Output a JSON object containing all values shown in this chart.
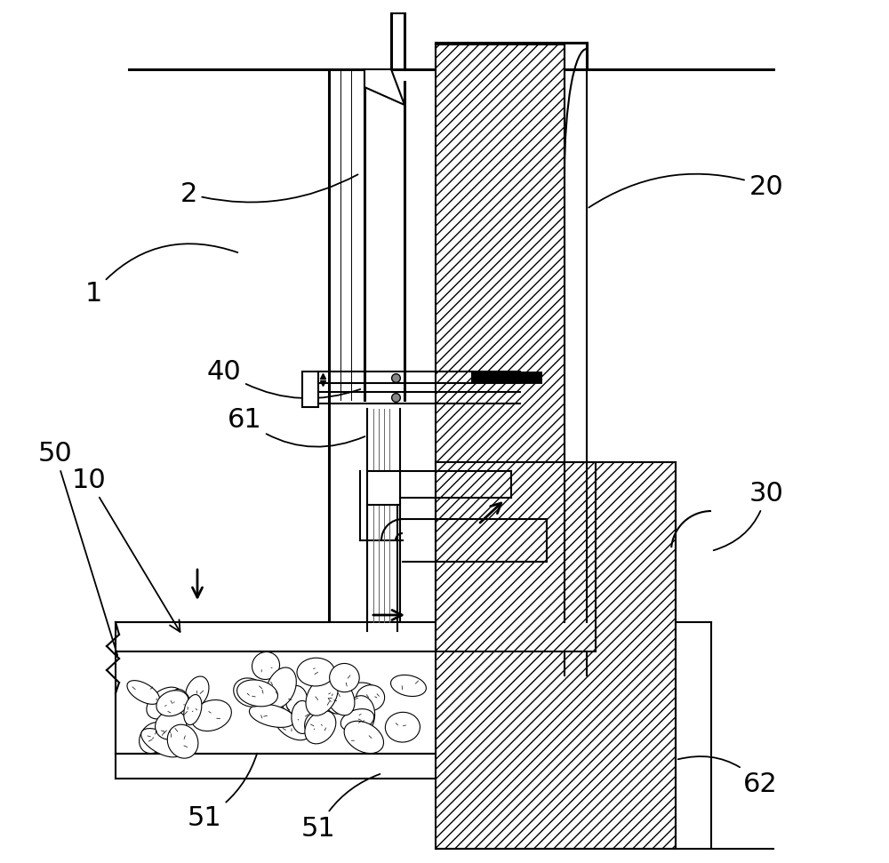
{
  "bg": "#ffffff",
  "lc": "#000000",
  "lw": 1.5,
  "lw_thick": 2.2,
  "lw_thin": 0.7,
  "label_fs": 22,
  "figw": 10.0,
  "figh": 9.71,
  "dpi": 100
}
